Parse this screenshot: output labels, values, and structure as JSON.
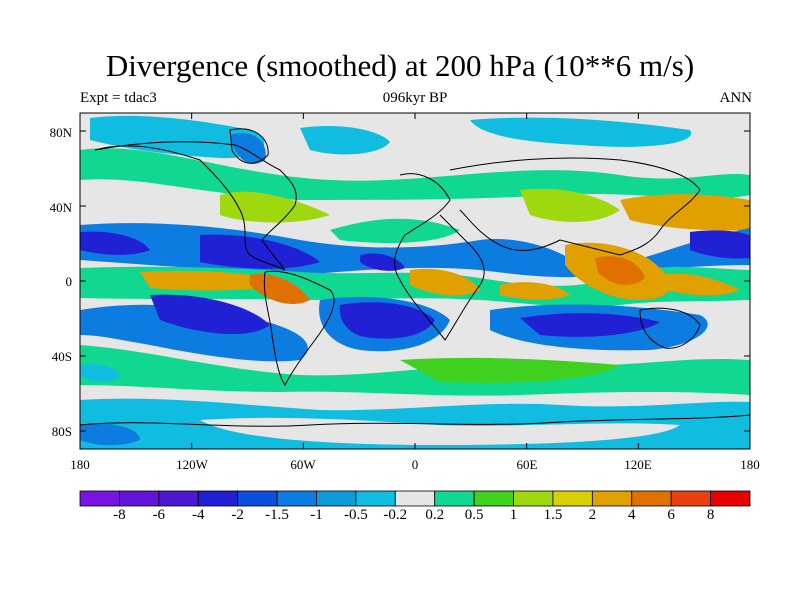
{
  "title": "Divergence (smoothed) at 200 hPa (10**6 m/s)",
  "left_subtitle": "Expt = tdac3",
  "center_subtitle": "096kyr BP",
  "right_subtitle": "ANN",
  "lat_ticks": [
    "80N",
    "40N",
    "0",
    "40S",
    "80S"
  ],
  "lon_ticks": [
    "180",
    "120W",
    "60W",
    "0",
    "60E",
    "120E",
    "180"
  ],
  "colorbar": {
    "labels": [
      "-8",
      "-6",
      "-4",
      "-2",
      "-1.5",
      "-1",
      "-0.5",
      "-0.2",
      "0.2",
      "0.5",
      "1",
      "1.5",
      "2",
      "4",
      "6",
      "8"
    ],
    "colors": [
      "#7a14e0",
      "#6414d8",
      "#4c18d0",
      "#2020d4",
      "#0a50dc",
      "#0c7ce0",
      "#0c9cdc",
      "#10bce0",
      "#e6e6e6",
      "#10d890",
      "#40d020",
      "#a0d810",
      "#d8d000",
      "#e0a000",
      "#e07000",
      "#e84010",
      "#e80000"
    ]
  },
  "map_colors": {
    "neutral": "#e6e6e6",
    "strong_negative": "#2020d4",
    "moderate_negative": "#0c7ce0",
    "weak_negative": "#10bce0",
    "weak_positive": "#10d890",
    "moderate_positive": "#40d020",
    "yellow_green": "#a0d810",
    "strong_positive": "#e0a000",
    "very_strong_positive": "#e07000",
    "coastline": "#000000"
  }
}
